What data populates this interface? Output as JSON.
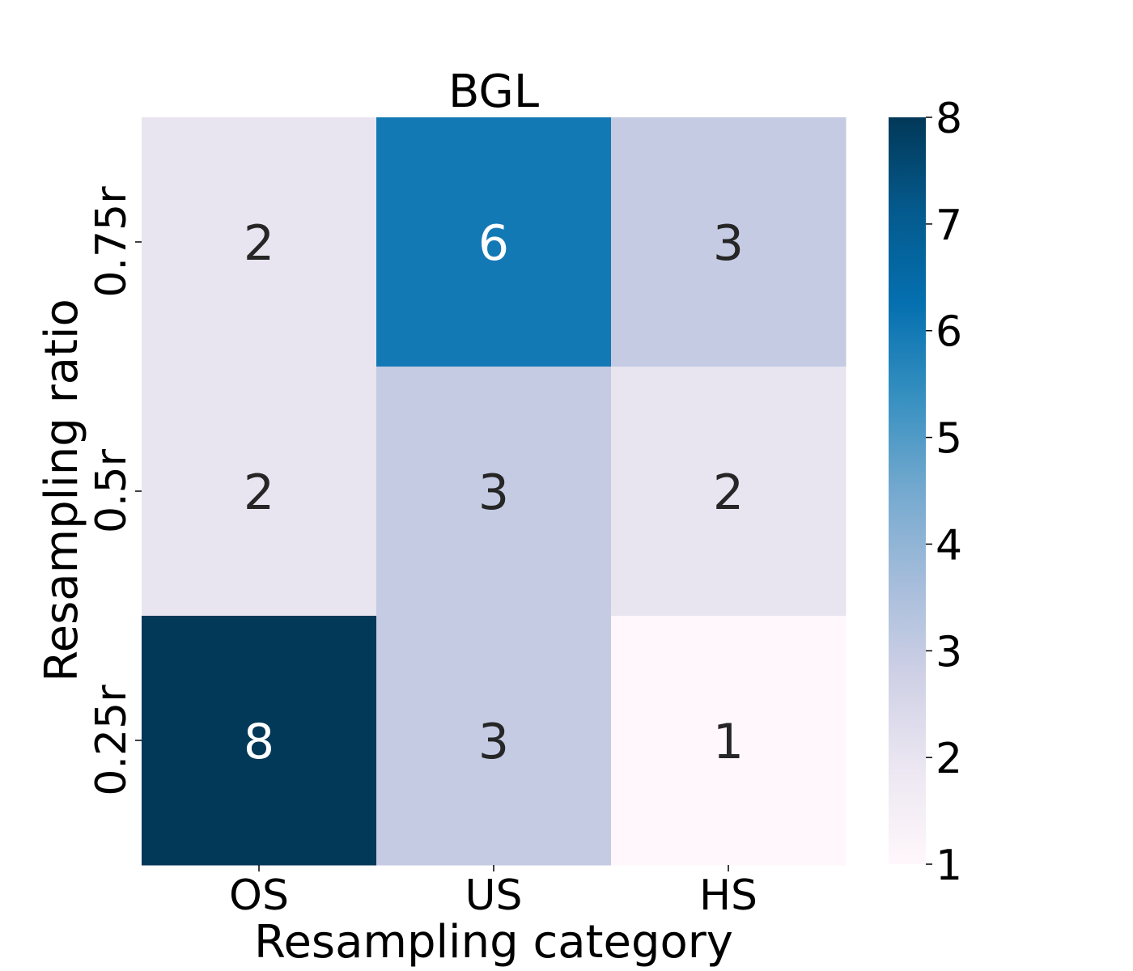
{
  "chart_data": {
    "type": "heatmap",
    "title": "BGL",
    "xlabel": "Resampling category",
    "ylabel": "Resampling ratio",
    "x_categories": [
      "OS",
      "US",
      "HS"
    ],
    "y_categories": [
      "0.75r",
      "0.5r",
      "0.25r"
    ],
    "values": [
      [
        2,
        6,
        3
      ],
      [
        2,
        3,
        2
      ],
      [
        8,
        3,
        1
      ]
    ],
    "colorbar": {
      "min": 1,
      "max": 8,
      "ticks": [
        1,
        2,
        3,
        4,
        5,
        6,
        7,
        8
      ],
      "colormap": "PuBu"
    },
    "colors": {
      "colormap_stops": [
        "#fff7fb",
        "#ece7f2",
        "#d0d1e6",
        "#a6bddb",
        "#74a9cf",
        "#3690c0",
        "#0570b0",
        "#045a8d",
        "#023858"
      ],
      "dark_text": "#262626",
      "light_text": "#ffffff"
    },
    "grid": false,
    "legend": "colorbar-right"
  }
}
